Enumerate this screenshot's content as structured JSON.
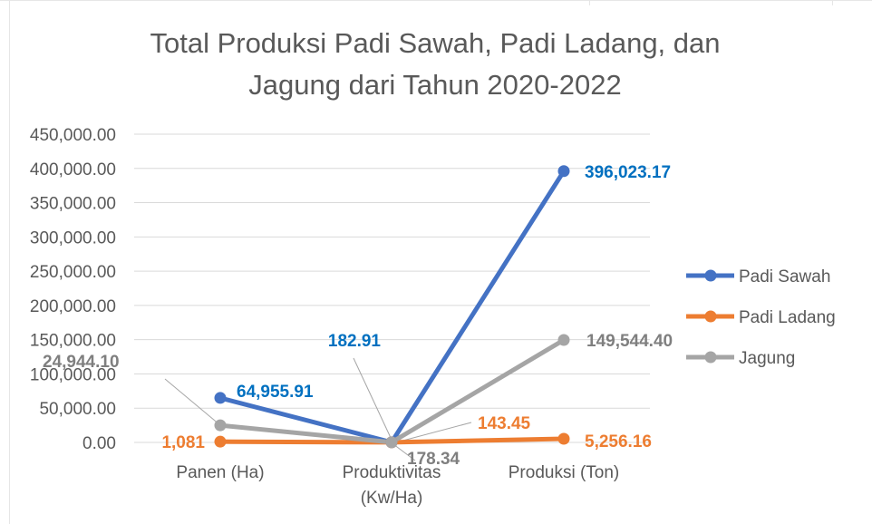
{
  "chart_data": {
    "type": "line",
    "title": "Total Produksi Padi Sawah, Padi Ladang, dan Jagung dari Tahun 2020-2022",
    "title_lines": [
      "Total Produksi Padi Sawah, Padi Ladang, dan",
      "Jagung dari Tahun 2020-2022"
    ],
    "categories": [
      {
        "label_lines": [
          "Panen (Ha)"
        ]
      },
      {
        "label_lines": [
          "Produktivitas",
          "(Kw/Ha)"
        ]
      },
      {
        "label_lines": [
          "Produksi (Ton)"
        ]
      }
    ],
    "ylim": [
      0,
      450000
    ],
    "ytick_values": [
      0,
      50000,
      100000,
      150000,
      200000,
      250000,
      300000,
      350000,
      400000,
      450000
    ],
    "ytick_labels": [
      "0.00",
      "50,000.00",
      "100,000.00",
      "150,000.00",
      "200,000.00",
      "250,000.00",
      "300,000.00",
      "350,000.00",
      "400,000.00",
      "450,000.00"
    ],
    "grid": true,
    "legend_position": "right",
    "series": [
      {
        "name": "Padi Sawah",
        "color": "#4472C4",
        "label_color": "#0070C0",
        "values": [
          64955.91,
          182.91,
          396023.17
        ],
        "labels": [
          "64,955.91",
          "182.91",
          "396,023.17"
        ]
      },
      {
        "name": "Padi Ladang",
        "color": "#ED7D31",
        "label_color": "#ED7D31",
        "values": [
          1081,
          143.45,
          5256.16
        ],
        "labels": [
          "1,081",
          "143.45",
          "5,256.16"
        ]
      },
      {
        "name": "Jagung",
        "color": "#A5A5A5",
        "label_color": "#7F7F7F",
        "values": [
          24944.1,
          178.34,
          149544.4
        ],
        "labels": [
          "24,944.10",
          "178.34",
          "149,544.40"
        ]
      }
    ]
  }
}
